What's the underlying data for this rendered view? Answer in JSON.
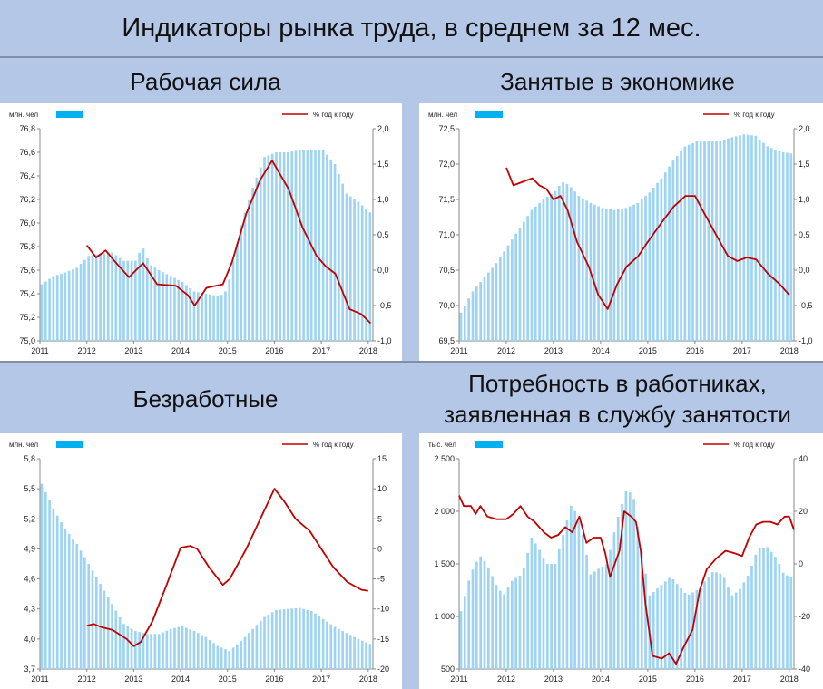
{
  "title": "Индикаторы рынка труда, в среднем за 12 мес.",
  "colors": {
    "bars": "#9dd3f3",
    "line": "#c00000",
    "legend_bar": "#00b0f0",
    "background": "#b4c7e7"
  },
  "panels": [
    {
      "title_lines": [
        "Рабочая сила"
      ]
    },
    {
      "title_lines": [
        "Занятые в экономике"
      ]
    },
    {
      "title_lines": [
        "Безработные"
      ]
    },
    {
      "title_lines": [
        "Потребность в работниках,",
        "заявленная в службу занятости"
      ]
    }
  ],
  "chart_data": [
    {
      "type": "bar+line",
      "left_unit": "млн. чел",
      "right_unit": "% год к году",
      "x_ticks": [
        "2011",
        "2012",
        "2013",
        "2014",
        "2015",
        "2016",
        "2017",
        "2018"
      ],
      "x_range": [
        2011,
        2018.1
      ],
      "y_left_range": [
        75.0,
        76.8
      ],
      "y_left_ticks": [
        "75,0",
        "75,2",
        "75,4",
        "75,6",
        "75,8",
        "76,0",
        "76,2",
        "76,4",
        "76,6",
        "76,8"
      ],
      "y_right_range": [
        -1.0,
        2.0
      ],
      "y_right_ticks": [
        "-1,0",
        "-0,5",
        "0,0",
        "0,5",
        "1,0",
        "1,5",
        "2,0"
      ],
      "bars": [
        [
          2011.0,
          75.48
        ],
        [
          2011.25,
          75.55
        ],
        [
          2011.5,
          75.58
        ],
        [
          2011.75,
          75.62
        ],
        [
          2012.0,
          75.72
        ],
        [
          2012.25,
          75.74
        ],
        [
          2012.5,
          75.75
        ],
        [
          2012.75,
          75.68
        ],
        [
          2013.0,
          75.68
        ],
        [
          2013.15,
          75.8
        ],
        [
          2013.3,
          75.65
        ],
        [
          2013.5,
          75.6
        ],
        [
          2013.75,
          75.55
        ],
        [
          2014.0,
          75.5
        ],
        [
          2014.25,
          75.42
        ],
        [
          2014.5,
          75.4
        ],
        [
          2014.75,
          75.38
        ],
        [
          2014.9,
          75.4
        ],
        [
          2015.0,
          75.52
        ],
        [
          2015.25,
          75.98
        ],
        [
          2015.5,
          76.3
        ],
        [
          2015.75,
          76.56
        ],
        [
          2016.0,
          76.6
        ],
        [
          2016.25,
          76.6
        ],
        [
          2016.5,
          76.62
        ],
        [
          2016.75,
          76.62
        ],
        [
          2017.0,
          76.62
        ],
        [
          2017.25,
          76.5
        ],
        [
          2017.5,
          76.25
        ],
        [
          2017.75,
          76.18
        ],
        [
          2018.0,
          76.09
        ]
      ],
      "line": [
        [
          2012.0,
          0.35
        ],
        [
          2012.2,
          0.18
        ],
        [
          2012.4,
          0.28
        ],
        [
          2012.6,
          0.12
        ],
        [
          2012.9,
          -0.1
        ],
        [
          2013.2,
          0.1
        ],
        [
          2013.5,
          -0.2
        ],
        [
          2013.9,
          -0.22
        ],
        [
          2014.15,
          -0.35
        ],
        [
          2014.3,
          -0.5
        ],
        [
          2014.55,
          -0.25
        ],
        [
          2014.9,
          -0.2
        ],
        [
          2015.1,
          0.12
        ],
        [
          2015.4,
          0.8
        ],
        [
          2015.7,
          1.28
        ],
        [
          2015.95,
          1.55
        ],
        [
          2016.3,
          1.15
        ],
        [
          2016.6,
          0.6
        ],
        [
          2016.9,
          0.2
        ],
        [
          2017.1,
          0.05
        ],
        [
          2017.3,
          -0.05
        ],
        [
          2017.6,
          -0.55
        ],
        [
          2017.85,
          -0.62
        ],
        [
          2018.05,
          -0.75
        ]
      ]
    },
    {
      "type": "bar+line",
      "left_unit": "млн. чел",
      "right_unit": "% год к году",
      "x_ticks": [
        "2011",
        "2012",
        "2013",
        "2014",
        "2015",
        "2016",
        "2017",
        "2018"
      ],
      "x_range": [
        2011,
        2018.1
      ],
      "y_left_range": [
        69.5,
        72.5
      ],
      "y_left_ticks": [
        "69,5",
        "70,0",
        "70,5",
        "71,0",
        "71,5",
        "72,0",
        "72,5"
      ],
      "y_right_range": [
        -1.0,
        2.0
      ],
      "y_right_ticks": [
        "-1,0",
        "-0,5",
        "0,0",
        "0,5",
        "1,0",
        "1,5",
        "2,0"
      ],
      "bars": [
        [
          2011.0,
          69.9
        ],
        [
          2011.25,
          70.2
        ],
        [
          2011.5,
          70.4
        ],
        [
          2011.75,
          70.6
        ],
        [
          2012.0,
          70.85
        ],
        [
          2012.25,
          71.1
        ],
        [
          2012.5,
          71.35
        ],
        [
          2012.75,
          71.5
        ],
        [
          2013.0,
          71.62
        ],
        [
          2013.15,
          71.75
        ],
        [
          2013.3,
          71.7
        ],
        [
          2013.5,
          71.55
        ],
        [
          2013.75,
          71.45
        ],
        [
          2014.0,
          71.38
        ],
        [
          2014.25,
          71.35
        ],
        [
          2014.5,
          71.38
        ],
        [
          2014.75,
          71.45
        ],
        [
          2015.0,
          71.6
        ],
        [
          2015.25,
          71.8
        ],
        [
          2015.5,
          72.05
        ],
        [
          2015.75,
          72.25
        ],
        [
          2016.0,
          72.32
        ],
        [
          2016.25,
          72.32
        ],
        [
          2016.5,
          72.33
        ],
        [
          2016.75,
          72.38
        ],
        [
          2017.0,
          72.42
        ],
        [
          2017.25,
          72.4
        ],
        [
          2017.5,
          72.25
        ],
        [
          2017.75,
          72.18
        ],
        [
          2018.0,
          72.15
        ]
      ],
      "line": [
        [
          2012.0,
          1.45
        ],
        [
          2012.15,
          1.2
        ],
        [
          2012.35,
          1.25
        ],
        [
          2012.55,
          1.3
        ],
        [
          2012.7,
          1.2
        ],
        [
          2012.85,
          1.15
        ],
        [
          2013.0,
          1.0
        ],
        [
          2013.15,
          1.05
        ],
        [
          2013.3,
          0.85
        ],
        [
          2013.5,
          0.4
        ],
        [
          2013.75,
          0.05
        ],
        [
          2013.95,
          -0.35
        ],
        [
          2014.15,
          -0.55
        ],
        [
          2014.35,
          -0.2
        ],
        [
          2014.55,
          0.05
        ],
        [
          2014.8,
          0.2
        ],
        [
          2015.0,
          0.4
        ],
        [
          2015.3,
          0.68
        ],
        [
          2015.55,
          0.9
        ],
        [
          2015.8,
          1.05
        ],
        [
          2016.0,
          1.05
        ],
        [
          2016.2,
          0.8
        ],
        [
          2016.45,
          0.5
        ],
        [
          2016.7,
          0.2
        ],
        [
          2016.9,
          0.13
        ],
        [
          2017.1,
          0.18
        ],
        [
          2017.3,
          0.15
        ],
        [
          2017.55,
          -0.05
        ],
        [
          2017.8,
          -0.2
        ],
        [
          2018.0,
          -0.35
        ]
      ]
    },
    {
      "type": "bar+line",
      "left_unit": "млн. чел",
      "right_unit": "% год к году",
      "x_ticks": [
        "2011",
        "2012",
        "2013",
        "2014",
        "2015",
        "2016",
        "2017",
        "2018"
      ],
      "x_range": [
        2011,
        2018.1
      ],
      "y_left_range": [
        3.7,
        5.8
      ],
      "y_left_ticks": [
        "3,7",
        "4,0",
        "4,3",
        "4,6",
        "4,9",
        "5,2",
        "5,5",
        "5,8"
      ],
      "y_right_range": [
        -20,
        15
      ],
      "y_right_ticks": [
        "-20",
        "-15",
        "-10",
        "-5",
        "0",
        "5",
        "10",
        "15"
      ],
      "bars": [
        [
          2011.0,
          5.55
        ],
        [
          2011.25,
          5.3
        ],
        [
          2011.5,
          5.1
        ],
        [
          2011.75,
          4.95
        ],
        [
          2012.0,
          4.75
        ],
        [
          2012.25,
          4.55
        ],
        [
          2012.5,
          4.35
        ],
        [
          2012.75,
          4.15
        ],
        [
          2013.0,
          4.08
        ],
        [
          2013.25,
          4.05
        ],
        [
          2013.5,
          4.05
        ],
        [
          2013.75,
          4.1
        ],
        [
          2014.0,
          4.13
        ],
        [
          2014.25,
          4.08
        ],
        [
          2014.5,
          4.02
        ],
        [
          2014.75,
          3.93
        ],
        [
          2015.0,
          3.88
        ],
        [
          2015.25,
          3.98
        ],
        [
          2015.5,
          4.1
        ],
        [
          2015.75,
          4.22
        ],
        [
          2016.0,
          4.29
        ],
        [
          2016.25,
          4.3
        ],
        [
          2016.5,
          4.31
        ],
        [
          2016.75,
          4.28
        ],
        [
          2017.0,
          4.2
        ],
        [
          2017.25,
          4.12
        ],
        [
          2017.5,
          4.06
        ],
        [
          2017.75,
          4.0
        ],
        [
          2018.0,
          3.95
        ]
      ],
      "line": [
        [
          2012.0,
          -12.8
        ],
        [
          2012.15,
          -12.5
        ],
        [
          2012.3,
          -13.0
        ],
        [
          2012.55,
          -13.5
        ],
        [
          2012.85,
          -15.0
        ],
        [
          2013.0,
          -16.2
        ],
        [
          2013.15,
          -15.5
        ],
        [
          2013.4,
          -12.0
        ],
        [
          2013.7,
          -6.0
        ],
        [
          2014.0,
          0.2
        ],
        [
          2014.2,
          0.5
        ],
        [
          2014.35,
          0.0
        ],
        [
          2014.6,
          -3.0
        ],
        [
          2014.9,
          -6.0
        ],
        [
          2015.05,
          -5.0
        ],
        [
          2015.4,
          0.0
        ],
        [
          2015.7,
          5.0
        ],
        [
          2016.0,
          10.0
        ],
        [
          2016.2,
          8.0
        ],
        [
          2016.45,
          5.0
        ],
        [
          2016.75,
          3.0
        ],
        [
          2017.0,
          0.0
        ],
        [
          2017.25,
          -3.0
        ],
        [
          2017.55,
          -5.5
        ],
        [
          2017.85,
          -6.8
        ],
        [
          2018.0,
          -7.0
        ]
      ]
    },
    {
      "type": "bar+line",
      "left_unit": "тыс. чел",
      "right_unit": "% год к году",
      "x_ticks": [
        "2011",
        "2012",
        "2013",
        "2014",
        "2015",
        "2016",
        "2017",
        "2018"
      ],
      "x_range": [
        2011,
        2018.1
      ],
      "y_left_range": [
        500,
        2500
      ],
      "y_left_ticks": [
        "500",
        "1 000",
        "1 500",
        "2 000",
        "2 500"
      ],
      "y_right_range": [
        -40,
        40
      ],
      "y_right_ticks": [
        "-40",
        "-20",
        "0",
        "20",
        "40"
      ],
      "bars": [
        [
          2011.0,
          1050
        ],
        [
          2011.2,
          1400
        ],
        [
          2011.4,
          1580
        ],
        [
          2011.55,
          1500
        ],
        [
          2011.75,
          1300
        ],
        [
          2011.9,
          1200
        ],
        [
          2012.1,
          1350
        ],
        [
          2012.3,
          1400
        ],
        [
          2012.5,
          1750
        ],
        [
          2012.65,
          1650
        ],
        [
          2012.8,
          1500
        ],
        [
          2013.0,
          1500
        ],
        [
          2013.15,
          1750
        ],
        [
          2013.35,
          2080
        ],
        [
          2013.55,
          1850
        ],
        [
          2013.75,
          1400
        ],
        [
          2013.9,
          1450
        ],
        [
          2014.1,
          1500
        ],
        [
          2014.3,
          1900
        ],
        [
          2014.5,
          2190
        ],
        [
          2014.65,
          2170
        ],
        [
          2014.8,
          1700
        ],
        [
          2015.0,
          1200
        ],
        [
          2015.25,
          1300
        ],
        [
          2015.45,
          1380
        ],
        [
          2015.6,
          1300
        ],
        [
          2015.8,
          1200
        ],
        [
          2016.0,
          1250
        ],
        [
          2016.2,
          1350
        ],
        [
          2016.35,
          1430
        ],
        [
          2016.55,
          1400
        ],
        [
          2016.75,
          1200
        ],
        [
          2016.9,
          1250
        ],
        [
          2017.1,
          1400
        ],
        [
          2017.3,
          1650
        ],
        [
          2017.5,
          1660
        ],
        [
          2017.7,
          1550
        ],
        [
          2017.85,
          1400
        ],
        [
          2018.0,
          1380
        ]
      ],
      "line": [
        [
          2011.0,
          26
        ],
        [
          2011.1,
          22
        ],
        [
          2011.25,
          22
        ],
        [
          2011.35,
          19
        ],
        [
          2011.45,
          22
        ],
        [
          2011.6,
          18
        ],
        [
          2011.8,
          17
        ],
        [
          2012.0,
          17
        ],
        [
          2012.15,
          19
        ],
        [
          2012.3,
          22
        ],
        [
          2012.45,
          18
        ],
        [
          2012.6,
          16
        ],
        [
          2012.8,
          12
        ],
        [
          2012.95,
          10
        ],
        [
          2013.1,
          11
        ],
        [
          2013.25,
          14
        ],
        [
          2013.4,
          12
        ],
        [
          2013.55,
          18
        ],
        [
          2013.7,
          8
        ],
        [
          2013.85,
          10
        ],
        [
          2014.0,
          10
        ],
        [
          2014.1,
          4
        ],
        [
          2014.2,
          -5
        ],
        [
          2014.3,
          0
        ],
        [
          2014.4,
          5
        ],
        [
          2014.5,
          20
        ],
        [
          2014.65,
          18
        ],
        [
          2014.75,
          16
        ],
        [
          2014.85,
          5
        ],
        [
          2014.95,
          -15
        ],
        [
          2015.1,
          -35
        ],
        [
          2015.3,
          -36
        ],
        [
          2015.45,
          -34
        ],
        [
          2015.6,
          -38
        ],
        [
          2015.75,
          -32
        ],
        [
          2015.95,
          -25
        ],
        [
          2016.1,
          -10
        ],
        [
          2016.25,
          -2
        ],
        [
          2016.45,
          2
        ],
        [
          2016.65,
          5
        ],
        [
          2016.85,
          4
        ],
        [
          2017.0,
          3
        ],
        [
          2017.15,
          10
        ],
        [
          2017.3,
          15
        ],
        [
          2017.45,
          16
        ],
        [
          2017.6,
          16
        ],
        [
          2017.75,
          15
        ],
        [
          2017.9,
          18
        ],
        [
          2018.0,
          18
        ],
        [
          2018.1,
          13
        ]
      ]
    }
  ]
}
